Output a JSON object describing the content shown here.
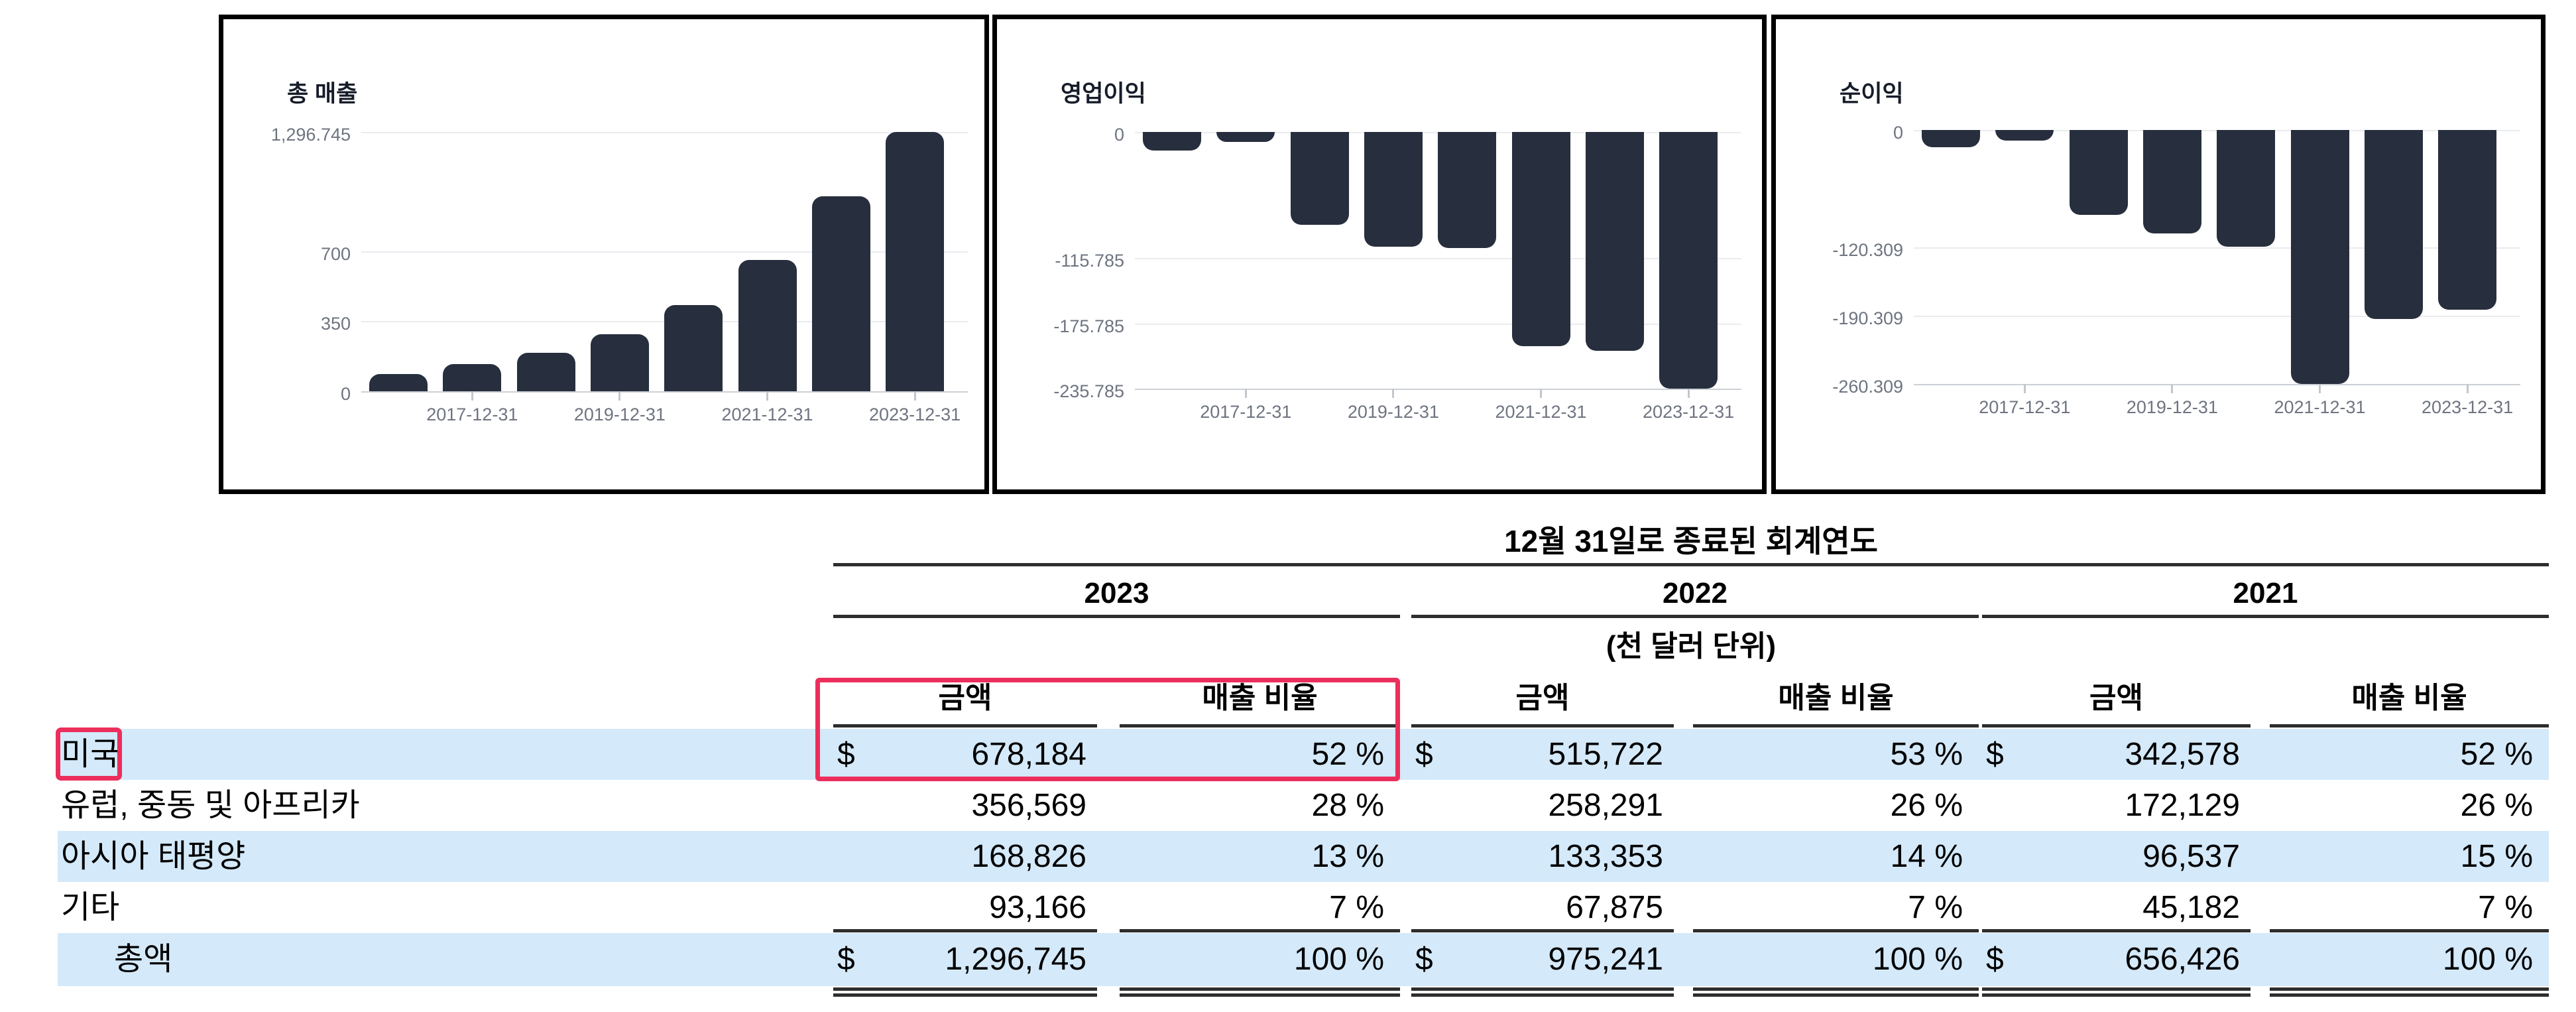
{
  "colors": {
    "bar_fill": "#272e3d",
    "row_highlight": "#d4e9f9",
    "annotation_red": "#ec2e5c",
    "gridline": "#e9ebef",
    "axis_line": "#ccd0d6",
    "axis_text": "#6e7480",
    "chart_border": "#000000",
    "table_line": "#2e2e2e"
  },
  "chart_data": [
    {
      "type": "bar",
      "title": "총 매출",
      "x": [
        "2016-12-31",
        "2017-12-31",
        "2018-12-31",
        "2019-12-31",
        "2020-12-31",
        "2021-12-31",
        "2022-12-31",
        "2023-12-31"
      ],
      "values": [
        84.8,
        134.9,
        192.7,
        287.0,
        431.1,
        656.4,
        975.2,
        1296.745
      ],
      "x_tick_labels": [
        "2017-12-31",
        "2019-12-31",
        "2021-12-31",
        "2023-12-31"
      ],
      "y_ticks": [
        {
          "label": "1,296.745",
          "value": 1296.745
        },
        {
          "label": "700",
          "value": 700
        },
        {
          "label": "350",
          "value": 350
        },
        {
          "label": "0",
          "value": 0
        }
      ],
      "ylim": [
        0,
        1296.745
      ],
      "xlabel": "",
      "ylabel": "",
      "grid": true,
      "legend": "none"
    },
    {
      "type": "bar",
      "title": "영업이익",
      "x": [
        "2016-12-31",
        "2017-12-31",
        "2018-12-31",
        "2019-12-31",
        "2020-12-31",
        "2021-12-31",
        "2022-12-31",
        "2023-12-31"
      ],
      "values": [
        -17.1,
        -9.3,
        -85.5,
        -105.5,
        -106.7,
        -196.9,
        -201.2,
        -235.785
      ],
      "x_tick_labels": [
        "2017-12-31",
        "2019-12-31",
        "2021-12-31",
        "2023-12-31"
      ],
      "y_ticks": [
        {
          "label": "0",
          "value": 0
        },
        {
          "label": "-115.785",
          "value": -115.785
        },
        {
          "label": "-175.785",
          "value": -175.785
        },
        {
          "label": "-235.785",
          "value": -235.785
        }
      ],
      "ylim": [
        -235.785,
        0
      ],
      "xlabel": "",
      "ylabel": "",
      "grid": true,
      "legend": "none"
    },
    {
      "type": "bar",
      "title": "순이익",
      "x": [
        "2016-12-31",
        "2017-12-31",
        "2018-12-31",
        "2019-12-31",
        "2020-12-31",
        "2021-12-31",
        "2022-12-31",
        "2023-12-31"
      ],
      "values": [
        -17.3,
        -10.7,
        -87.2,
        -105.8,
        -119.4,
        -260.309,
        -193.4,
        -183.9
      ],
      "x_tick_labels": [
        "2017-12-31",
        "2019-12-31",
        "2021-12-31",
        "2023-12-31"
      ],
      "y_ticks": [
        {
          "label": "0",
          "value": 0
        },
        {
          "label": "-120.309",
          "value": -120.309
        },
        {
          "label": "-190.309",
          "value": -190.309
        },
        {
          "label": "-260.309",
          "value": -260.309
        }
      ],
      "ylim": [
        -260.309,
        0
      ],
      "xlabel": "",
      "ylabel": "",
      "grid": true,
      "legend": "none"
    }
  ],
  "table": {
    "fiscal_header": "12월 31일로 종료된 회계연도",
    "unit_note": "(천 달러 단위)",
    "years": [
      "2023",
      "2022",
      "2021"
    ],
    "col_headers": {
      "amount": "금액",
      "ratio": "매출 비율"
    },
    "rows": [
      {
        "label": "미국",
        "highlight": true,
        "is_total": false,
        "annotated": true,
        "cells": [
          {
            "currency": "$",
            "amount": "678,184",
            "ratio": "52 %"
          },
          {
            "currency": "$",
            "amount": "515,722",
            "ratio": "53 %"
          },
          {
            "currency": "$",
            "amount": "342,578",
            "ratio": "52 %"
          }
        ]
      },
      {
        "label": "유럽, 중동 및 아프리카",
        "highlight": false,
        "is_total": false,
        "cells": [
          {
            "currency": "",
            "amount": "356,569",
            "ratio": "28 %"
          },
          {
            "currency": "",
            "amount": "258,291",
            "ratio": "26 %"
          },
          {
            "currency": "",
            "amount": "172,129",
            "ratio": "26 %"
          }
        ]
      },
      {
        "label": "아시아 태평양",
        "highlight": true,
        "is_total": false,
        "cells": [
          {
            "currency": "",
            "amount": "168,826",
            "ratio": "13 %"
          },
          {
            "currency": "",
            "amount": "133,353",
            "ratio": "14 %"
          },
          {
            "currency": "",
            "amount": "96,537",
            "ratio": "15 %"
          }
        ]
      },
      {
        "label": "기타",
        "highlight": false,
        "is_total": false,
        "cells": [
          {
            "currency": "",
            "amount": "93,166",
            "ratio": "7 %"
          },
          {
            "currency": "",
            "amount": "67,875",
            "ratio": "7 %"
          },
          {
            "currency": "",
            "amount": "45,182",
            "ratio": "7 %"
          }
        ]
      },
      {
        "label": "총액",
        "highlight": true,
        "is_total": true,
        "cells": [
          {
            "currency": "$",
            "amount": "1,296,745",
            "ratio": "100 %"
          },
          {
            "currency": "$",
            "amount": "975,241",
            "ratio": "100 %"
          },
          {
            "currency": "$",
            "amount": "656,426",
            "ratio": "100 %"
          }
        ]
      }
    ]
  },
  "annotations": {
    "highlighted_row_label": "미국",
    "highlighted_columns": [
      "2023 금액",
      "2023 매출 비율"
    ],
    "color": "#ec2e5c"
  }
}
